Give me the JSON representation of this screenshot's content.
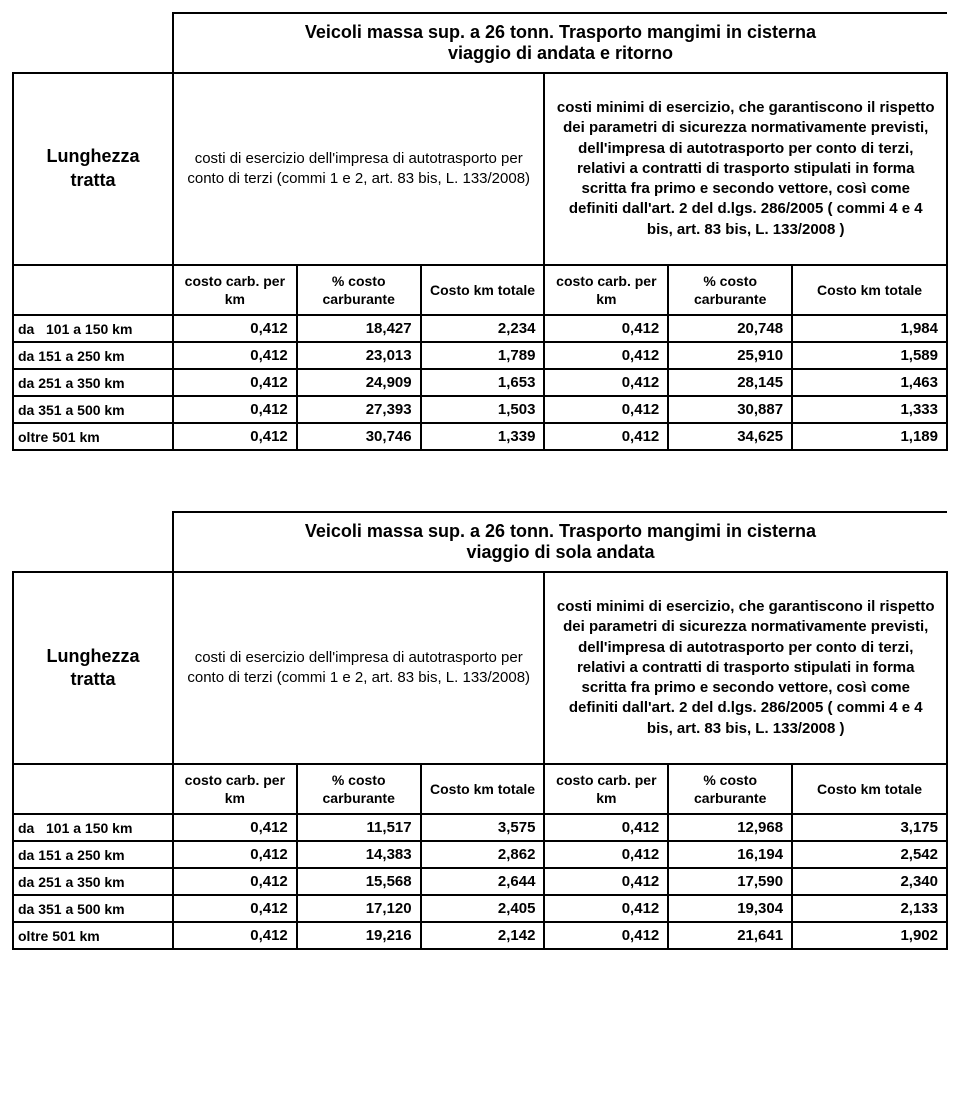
{
  "tables": [
    {
      "title": "Veicoli massa sup. a 26 tonn. Trasporto mangimi in cisterna\nviaggio di andata e ritorno",
      "left_label": "Lunghezza\ntratta",
      "desc_left": "costi di esercizio dell'impresa di autotrasporto per conto di terzi (commi 1 e 2, art. 83 bis, L. 133/2008)",
      "desc_right": "costi minimi di esercizio, che garantiscono il rispetto dei parametri di sicurezza normativamente previsti, dell'impresa di autotrasporto per conto di terzi, relativi a contratti di trasporto stipulati in forma scritta fra primo e secondo vettore, così come definiti dall'art. 2 del d.lgs. 286/2005 ( commi 4 e 4 bis, art. 83 bis, L. 133/2008 )",
      "col_heads": [
        "costo carb. per km",
        "% costo carburante",
        "Costo km totale",
        "costo carb. per km",
        "% costo carburante",
        "Costo km totale"
      ],
      "rows": [
        {
          "label": "da   101 a 150 km",
          "v": [
            "0,412",
            "18,427",
            "2,234",
            "0,412",
            "20,748",
            "1,984"
          ]
        },
        {
          "label": "da 151 a 250 km",
          "v": [
            "0,412",
            "23,013",
            "1,789",
            "0,412",
            "25,910",
            "1,589"
          ]
        },
        {
          "label": "da 251 a 350 km",
          "v": [
            "0,412",
            "24,909",
            "1,653",
            "0,412",
            "28,145",
            "1,463"
          ]
        },
        {
          "label": "da 351 a 500 km",
          "v": [
            "0,412",
            "27,393",
            "1,503",
            "0,412",
            "30,887",
            "1,333"
          ]
        },
        {
          "label": "oltre 501 km",
          "v": [
            "0,412",
            "30,746",
            "1,339",
            "0,412",
            "34,625",
            "1,189"
          ]
        }
      ]
    },
    {
      "title": "Veicoli massa sup. a 26 tonn. Trasporto mangimi in cisterna\nviaggio di sola andata",
      "left_label": "Lunghezza\ntratta",
      "desc_left": "costi di esercizio dell'impresa di autotrasporto per conto di terzi (commi 1 e 2, art. 83 bis, L. 133/2008)",
      "desc_right": "costi minimi di esercizio, che garantiscono il rispetto dei parametri di sicurezza normativamente previsti, dell'impresa di autotrasporto per conto di terzi, relativi a contratti di trasporto stipulati in forma scritta fra primo e secondo vettore, così come definiti dall'art. 2 del d.lgs. 286/2005 ( commi 4 e 4 bis, art. 83 bis, L. 133/2008 )",
      "col_heads": [
        "costo carb. per km",
        "% costo carburante",
        "Costo km totale",
        "costo carb. per km",
        "% costo carburante",
        "Costo km totale"
      ],
      "rows": [
        {
          "label": "da   101 a 150 km",
          "v": [
            "0,412",
            "11,517",
            "3,575",
            "0,412",
            "12,968",
            "3,175"
          ]
        },
        {
          "label": "da 151 a 250 km",
          "v": [
            "0,412",
            "14,383",
            "2,862",
            "0,412",
            "16,194",
            "2,542"
          ]
        },
        {
          "label": "da 251 a 350 km",
          "v": [
            "0,412",
            "15,568",
            "2,644",
            "0,412",
            "17,590",
            "2,340"
          ]
        },
        {
          "label": "da 351 a 500 km",
          "v": [
            "0,412",
            "17,120",
            "2,405",
            "0,412",
            "19,304",
            "2,133"
          ]
        },
        {
          "label": "oltre 501 km",
          "v": [
            "0,412",
            "19,216",
            "2,142",
            "0,412",
            "21,641",
            "1,902"
          ]
        }
      ]
    }
  ]
}
